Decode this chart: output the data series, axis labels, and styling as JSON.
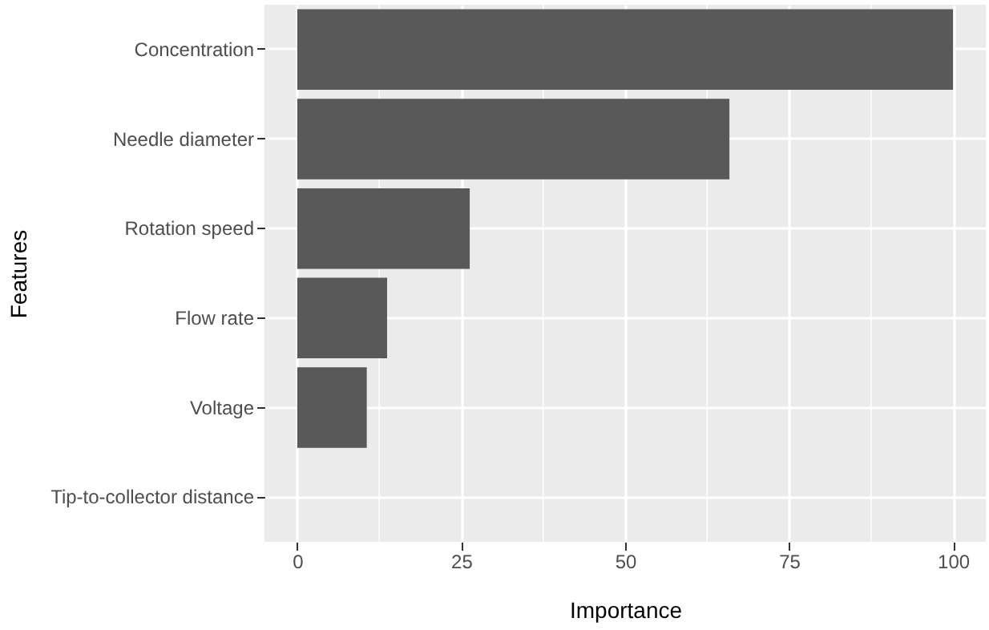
{
  "chart_data": {
    "type": "bar",
    "orientation": "horizontal",
    "xlabel": "Importance",
    "ylabel": "Features",
    "categories": [
      "Concentration",
      "Needle diameter",
      "Rotation speed",
      "Flow rate",
      "Voltage",
      "Tip-to-collector distance"
    ],
    "values": [
      100,
      65.9,
      26.3,
      13.7,
      10.6,
      0
    ],
    "color": "#595959",
    "xlim": [
      -5,
      105
    ],
    "xticks": [
      0,
      25,
      50,
      75,
      100
    ],
    "grid": true
  }
}
